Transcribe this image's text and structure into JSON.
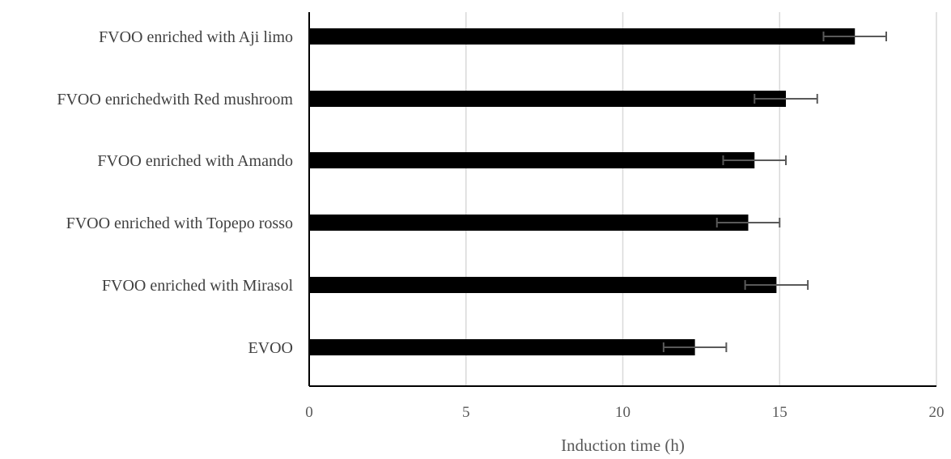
{
  "chart_data": {
    "type": "bar",
    "orientation": "horizontal",
    "categories": [
      "FVOO enriched with Aji limo",
      "FVOO enrichedwith Red mushroom",
      "FVOO enriched with Amando",
      "FVOO enriched with Topepo rosso",
      "FVOO enriched with Mirasol",
      "EVOO"
    ],
    "values": [
      17.4,
      15.2,
      14.2,
      14.0,
      14.9,
      12.3
    ],
    "errors": [
      1.0,
      1.0,
      1.0,
      1.0,
      1.0,
      1.0
    ],
    "xlim": [
      0,
      20
    ],
    "xticks": [
      "0",
      "5",
      "10",
      "15",
      "20"
    ],
    "xlabel": "Induction time (h)",
    "ylabel": "",
    "title": "",
    "grid": "vertical",
    "legend": "none",
    "colors": {
      "bar": "#000000",
      "error": "#595959",
      "grid": "#d9d9d9",
      "axis": "#000000"
    }
  }
}
